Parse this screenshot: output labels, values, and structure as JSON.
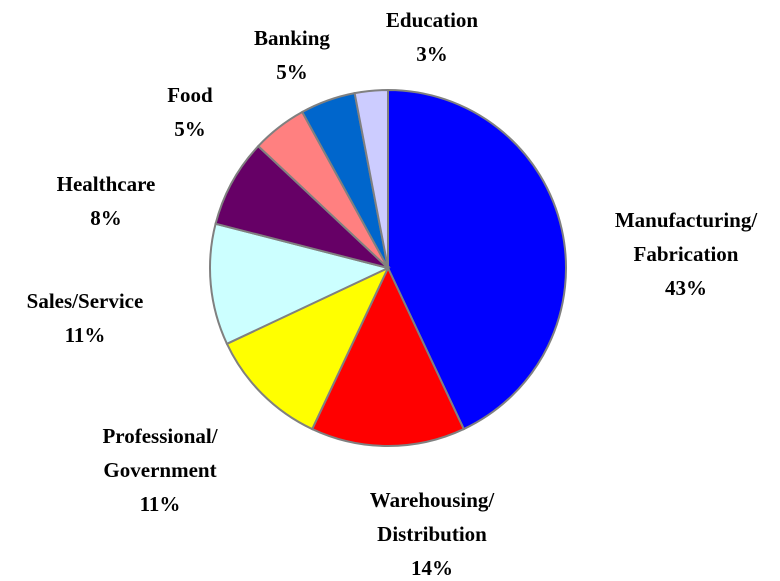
{
  "chart_data": {
    "type": "pie",
    "categories": [
      "Manufacturing/\nFabrication",
      "Warehousing/\nDistribution",
      "Professional/\nGovernment",
      "Sales/Service",
      "Healthcare",
      "Food",
      "Banking",
      "Education"
    ],
    "values": [
      43,
      14,
      11,
      11,
      8,
      5,
      5,
      3
    ],
    "value_labels": [
      "43%",
      "14%",
      "11%",
      "11%",
      "8%",
      "5%",
      "5%",
      "3%"
    ],
    "colors": [
      "#0000ff",
      "#ff0000",
      "#ffff00",
      "#ccffff",
      "#660066",
      "#ff8080",
      "#0066cc",
      "#ccccff"
    ]
  }
}
